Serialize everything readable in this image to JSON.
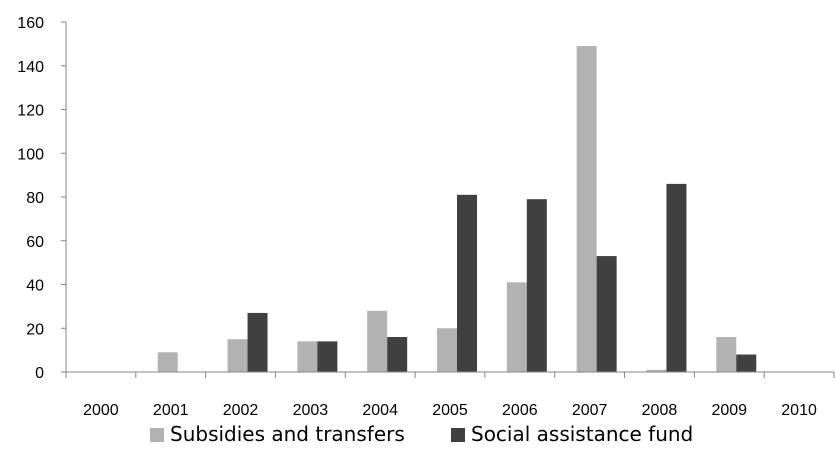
{
  "chart_data": {
    "type": "bar",
    "title": "",
    "xlabel": "",
    "ylabel": "",
    "categories": [
      "2000",
      "2001",
      "2002",
      "2003",
      "2004",
      "2005",
      "2006",
      "2007",
      "2008",
      "2009",
      "2010"
    ],
    "ylim": [
      0,
      160
    ],
    "yticks": [
      "0",
      "20",
      "40",
      "60",
      "80",
      "100",
      "120",
      "140",
      "160"
    ],
    "grid": false,
    "legend_position": "bottom",
    "series": [
      {
        "name": "Subsidies and transfers",
        "color": "#b2b2b2",
        "values": [
          0,
          9,
          15,
          14,
          28,
          20,
          41,
          149,
          1,
          16,
          0
        ]
      },
      {
        "name": "Social assistance fund",
        "color": "#404040",
        "values": [
          0,
          0,
          27,
          14,
          16,
          81,
          79,
          53,
          86,
          8,
          0
        ]
      }
    ]
  }
}
